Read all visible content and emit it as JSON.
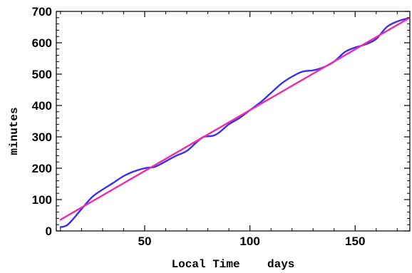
{
  "chart_data": {
    "type": "line",
    "title": "",
    "xlabel": "Local Time    days",
    "ylabel": "minutes",
    "xlim": [
      8,
      176
    ],
    "ylim": [
      0,
      700
    ],
    "x_ticks": [
      50,
      100,
      150
    ],
    "y_ticks": [
      0,
      100,
      200,
      300,
      400,
      500,
      600,
      700
    ],
    "grid": false,
    "legend": "none",
    "series": [
      {
        "color": "#3a2cf2",
        "style": "data",
        "x": [
          10,
          13,
          16,
          20,
          25,
          30,
          35,
          40,
          45,
          50,
          55,
          60,
          65,
          70,
          75,
          78,
          82,
          85,
          90,
          95,
          100,
          105,
          110,
          115,
          120,
          125,
          130,
          135,
          140,
          145,
          150,
          155,
          160,
          165,
          170,
          175
        ],
        "y": [
          12,
          18,
          38,
          70,
          108,
          132,
          153,
          175,
          190,
          200,
          205,
          222,
          240,
          255,
          285,
          300,
          303,
          312,
          340,
          360,
          385,
          410,
          440,
          470,
          492,
          508,
          512,
          522,
          540,
          570,
          585,
          595,
          612,
          650,
          668,
          678
        ]
      },
      {
        "color": "#f02aa6",
        "style": "fit",
        "x": [
          10,
          176
        ],
        "y": [
          36,
          680
        ]
      }
    ]
  }
}
